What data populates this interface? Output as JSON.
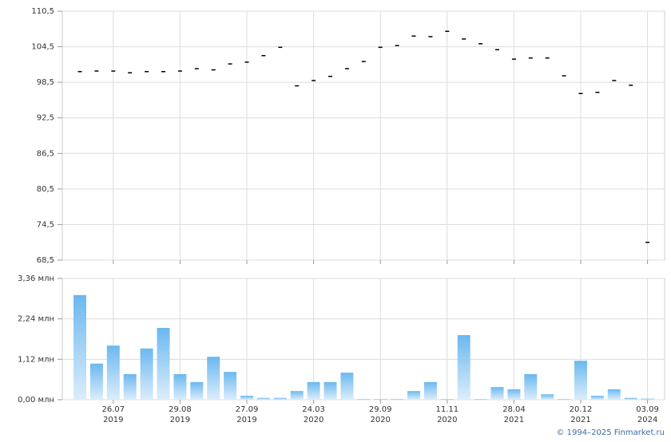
{
  "chart_data": [
    {
      "type": "tick",
      "categories": [
        null,
        null,
        "26.07 2019",
        null,
        null,
        null,
        "29.08 2019",
        null,
        null,
        null,
        "27.09 2019",
        null,
        null,
        null,
        "24.03 2020",
        null,
        null,
        null,
        "29.09 2020",
        null,
        null,
        null,
        "11.11 2020",
        null,
        null,
        null,
        "28.04 2021",
        null,
        null,
        null,
        "20.12 2021",
        null,
        null,
        null,
        "03.09 2024"
      ],
      "values": [
        100.3,
        100.4,
        100.4,
        100.1,
        100.3,
        100.3,
        100.4,
        100.8,
        100.6,
        101.6,
        101.9,
        103.0,
        104.4,
        97.9,
        98.8,
        99.5,
        100.8,
        102.0,
        104.4,
        104.7,
        106.3,
        106.2,
        107.1,
        105.8,
        105.0,
        104.0,
        102.4,
        102.6,
        102.6,
        99.6,
        96.6,
        96.8,
        98.8,
        98.0,
        71.5
      ],
      "color": "#000000",
      "ylim": [
        68.5,
        110.5
      ],
      "yticks": [
        {
          "value": 110.5,
          "label": "110,5"
        },
        {
          "value": 104.5,
          "label": "104,5"
        },
        {
          "value": 98.5,
          "label": "98,5"
        },
        {
          "value": 92.5,
          "label": "92,5"
        },
        {
          "value": 86.5,
          "label": "86,5"
        },
        {
          "value": 80.5,
          "label": "80,5"
        },
        {
          "value": 74.5,
          "label": "74,5"
        },
        {
          "value": 68.5,
          "label": "68,5"
        }
      ],
      "grid": true
    },
    {
      "type": "bar",
      "categories": [
        null,
        null,
        "26.07 2019",
        null,
        null,
        null,
        "29.08 2019",
        null,
        null,
        null,
        "27.09 2019",
        null,
        null,
        null,
        "24.03 2020",
        null,
        null,
        null,
        "29.09 2020",
        null,
        null,
        null,
        "11.11 2020",
        null,
        null,
        null,
        "28.04 2021",
        null,
        null,
        null,
        "20.12 2021",
        null,
        null,
        null,
        "03.09 2024"
      ],
      "values": [
        2.9,
        1.0,
        1.5,
        0.71,
        1.42,
        1.99,
        0.71,
        0.49,
        1.19,
        0.77,
        0.11,
        0.05,
        0.05,
        0.24,
        0.49,
        0.49,
        0.75,
        0.02,
        0.02,
        0.02,
        0.24,
        0.49,
        0.02,
        1.79,
        0.02,
        0.35,
        0.29,
        0.71,
        0.15,
        0.02,
        1.08,
        0.11,
        0.29,
        0.05,
        0.03
      ],
      "color": "#6bb8ef",
      "ylim": [
        0,
        3.36
      ],
      "yticks": [
        {
          "value": 3.36,
          "label": "3,36 млн"
        },
        {
          "value": 2.24,
          "label": "2,24 млн"
        },
        {
          "value": 1.12,
          "label": "1,12 млн"
        },
        {
          "value": 0,
          "label": "0,00 млн"
        }
      ],
      "grid": true
    }
  ],
  "credit": "© 1994–2025 Finmarket.ru"
}
